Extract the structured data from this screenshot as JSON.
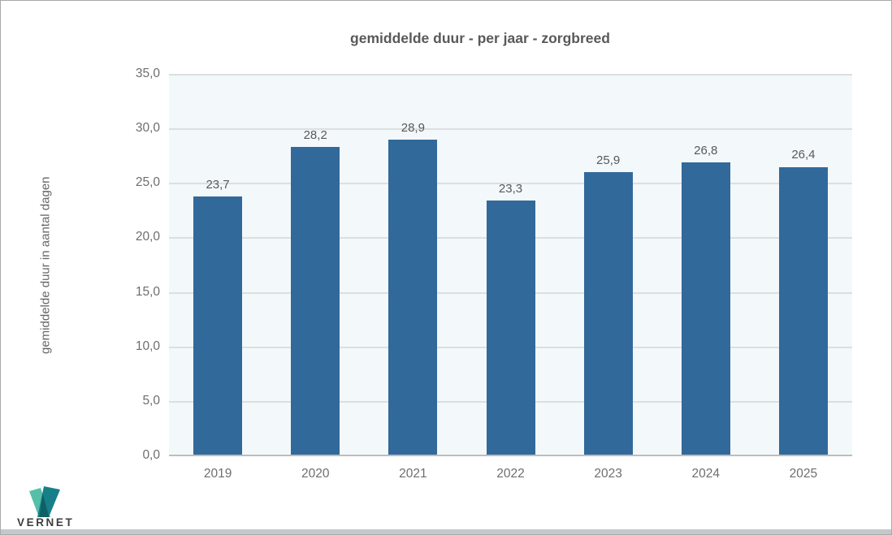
{
  "chart_data": {
    "type": "bar",
    "title": "gemiddelde duur - per jaar - zorgbreed",
    "xlabel": "",
    "ylabel": "gemiddelde duur in aantal dagen",
    "categories": [
      "2019",
      "2020",
      "2021",
      "2022",
      "2023",
      "2024",
      "2025"
    ],
    "values": [
      23.7,
      28.2,
      28.9,
      23.3,
      25.9,
      26.8,
      26.4
    ],
    "value_labels": [
      "23,7",
      "28,2",
      "28,9",
      "23,3",
      "25,9",
      "26,8",
      "26,4"
    ],
    "ylim": [
      0,
      35
    ],
    "yticks": [
      0,
      5,
      10,
      15,
      20,
      25,
      30,
      35
    ],
    "ytick_labels": [
      "0,0",
      "5,0",
      "10,0",
      "15,0",
      "20,0",
      "25,0",
      "30,0",
      "35,0"
    ],
    "grid": true,
    "legend": false,
    "colors": {
      "bar": "#32699b",
      "plot_background": "#f3f8fa",
      "gridline": "#dcdfe0",
      "axis_line": "#bdbdbd",
      "title_text": "#595959",
      "tick_text": "#6e6e6e",
      "value_label_text": "#595959"
    }
  },
  "branding": {
    "logo_text": "VERNET",
    "logo_colors": {
      "light": "#56bfa7",
      "dark": "#177f87",
      "overlap": "#0f5f66"
    }
  }
}
